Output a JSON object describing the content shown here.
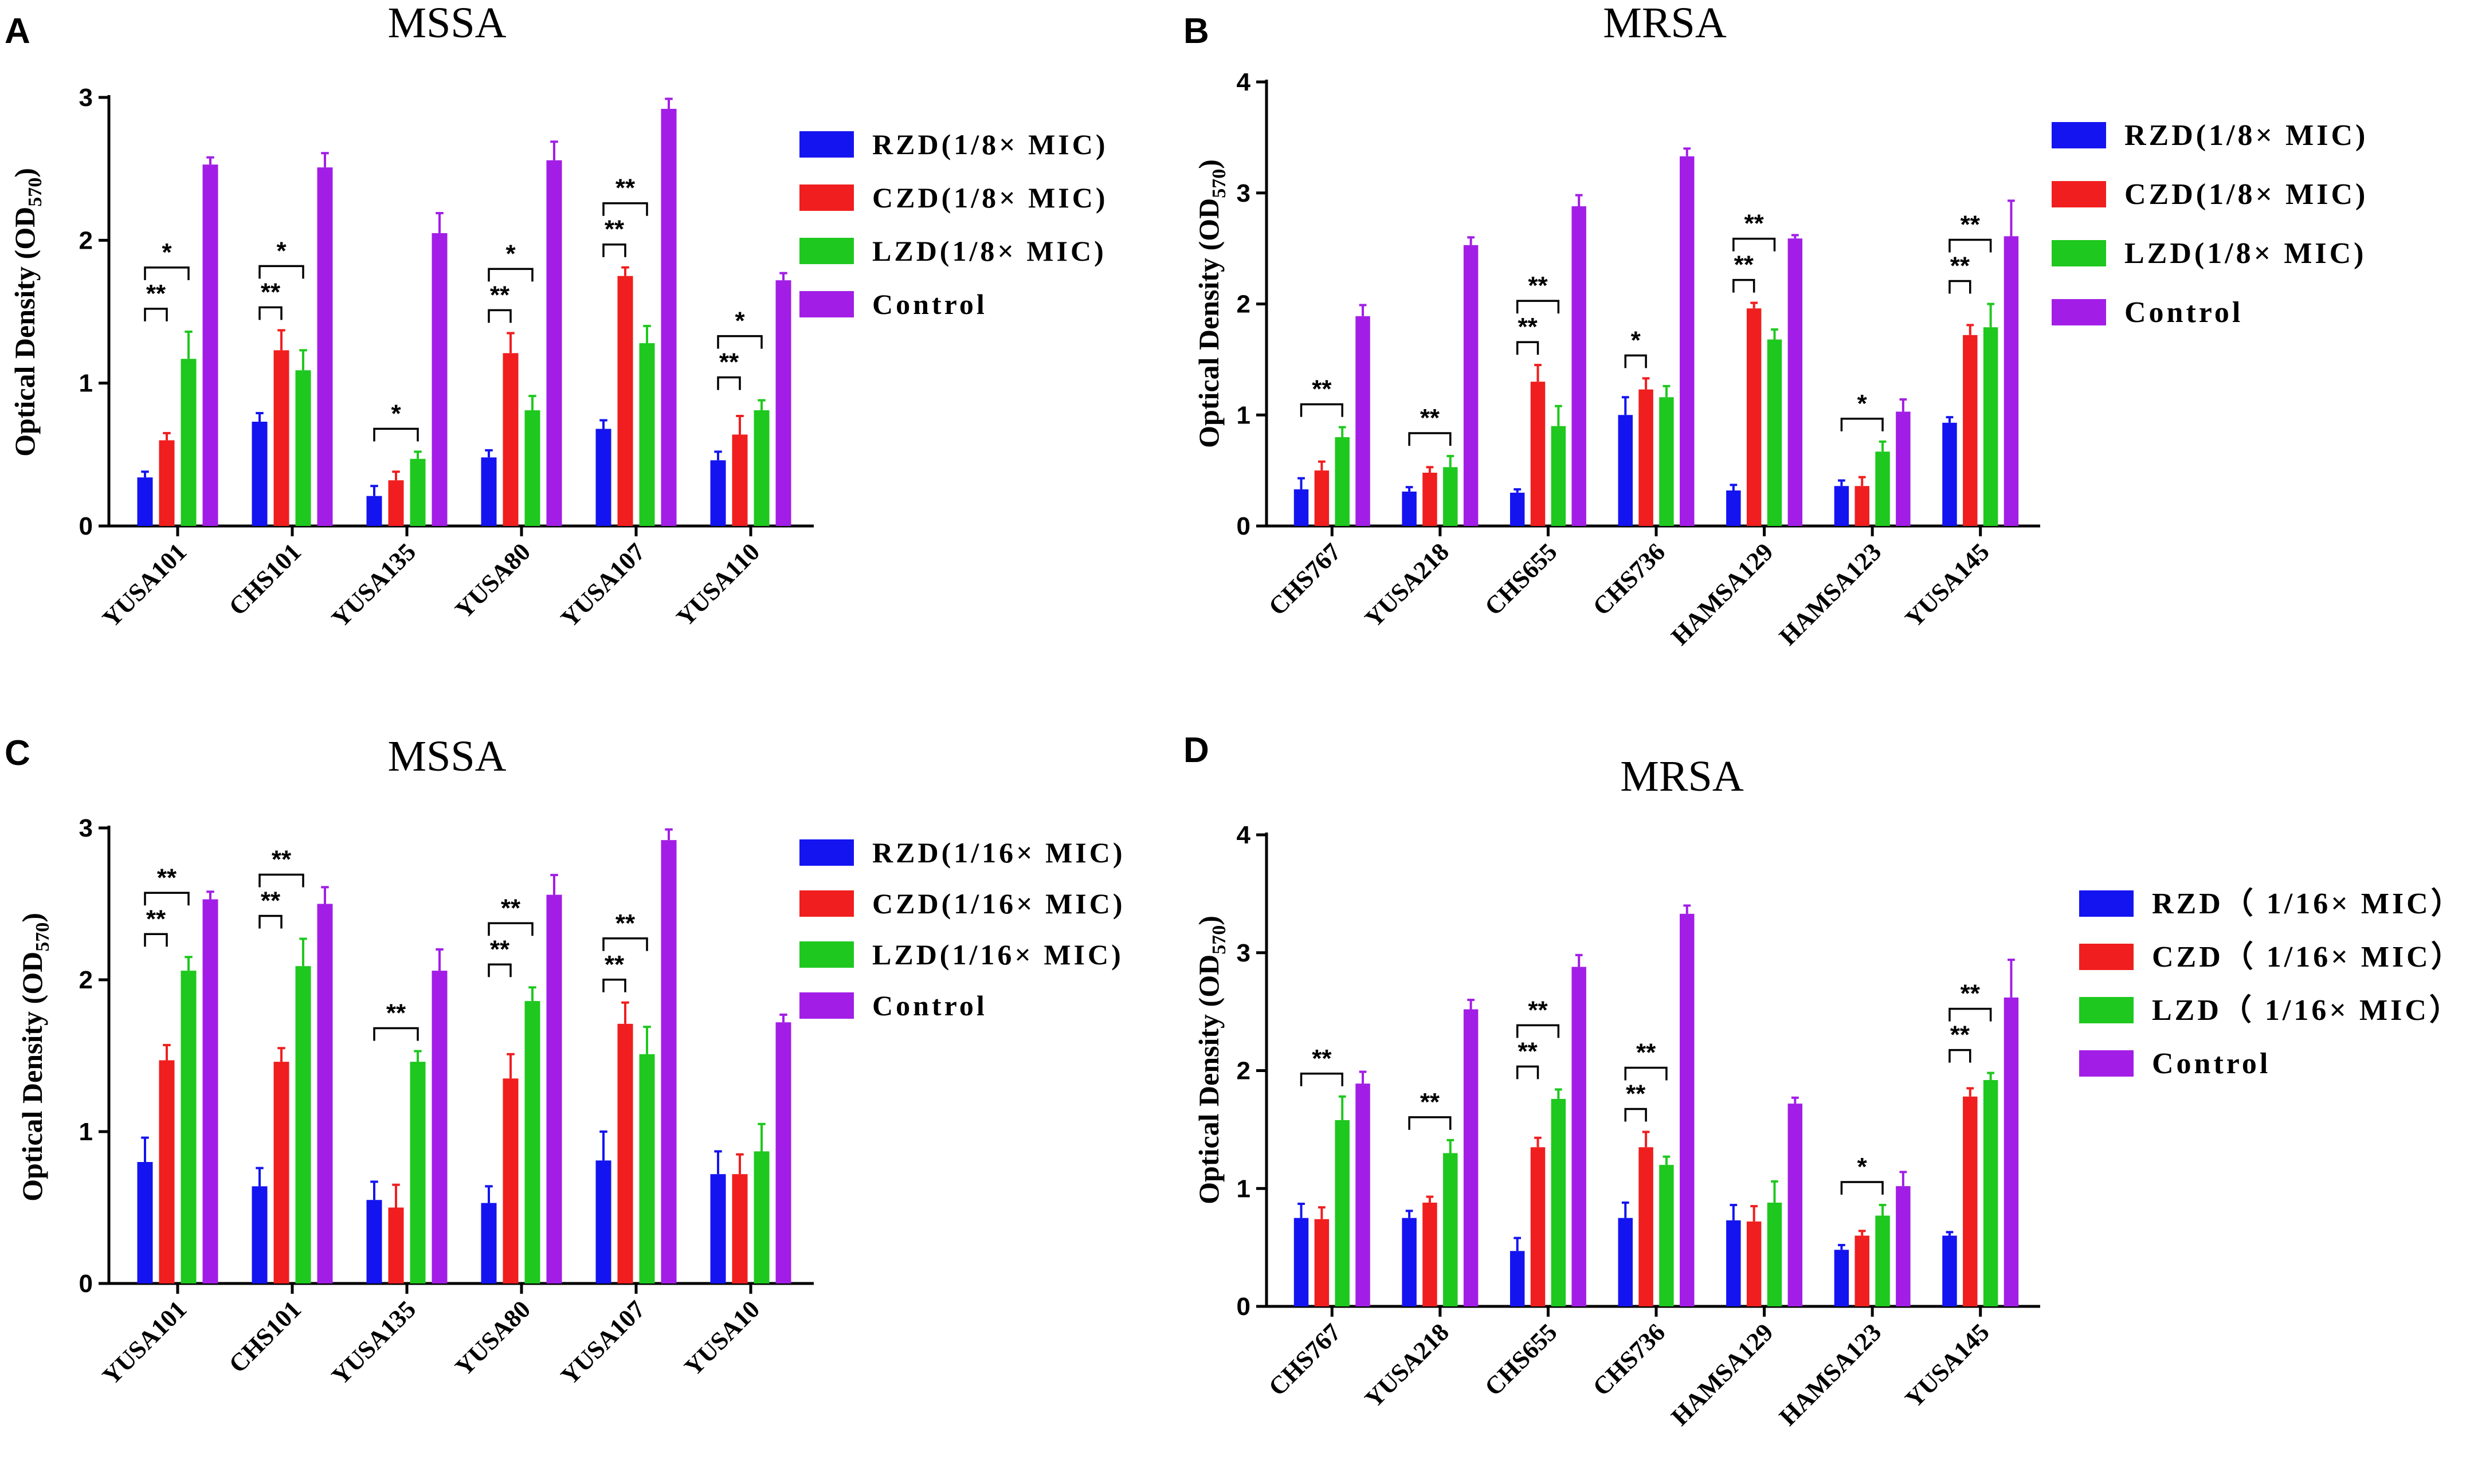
{
  "figure": {
    "colors": {
      "RZD": "#1414f0",
      "CZD": "#f01e1e",
      "LZD": "#1ec81e",
      "Control": "#a21ee6"
    }
  },
  "chart_data": [
    {
      "type": "bar",
      "panel_label": "A",
      "title": "MSSA",
      "ylabel": "Optical Density (OD",
      "ylabel_sub": "570",
      "ylabel_close": ")",
      "ylim": [
        0,
        3
      ],
      "yticks": [
        "0",
        "1",
        "2",
        "3"
      ],
      "categories": [
        "YUSA101",
        "CHS101",
        "YUSA135",
        "YUSA80",
        "YUSA107",
        "YUSA110"
      ],
      "series": [
        {
          "name": "RZD(1/8× MIC)",
          "key": "RZD",
          "values": [
            0.34,
            0.73,
            0.21,
            0.48,
            0.68,
            0.46
          ],
          "errors": [
            0.04,
            0.06,
            0.07,
            0.05,
            0.06,
            0.06
          ]
        },
        {
          "name": "CZD(1/8× MIC)",
          "key": "CZD",
          "values": [
            0.6,
            1.23,
            0.32,
            1.21,
            1.75,
            0.64
          ],
          "errors": [
            0.05,
            0.14,
            0.06,
            0.14,
            0.06,
            0.13
          ]
        },
        {
          "name": "LZD(1/8× MIC)",
          "key": "LZD",
          "values": [
            1.17,
            1.09,
            0.47,
            0.81,
            1.28,
            0.81
          ],
          "errors": [
            0.19,
            0.14,
            0.05,
            0.1,
            0.12,
            0.07
          ]
        },
        {
          "name": "Control",
          "key": "Control",
          "values": [
            2.53,
            2.51,
            2.05,
            2.56,
            2.92,
            1.72
          ],
          "errors": [
            0.05,
            0.1,
            0.14,
            0.13,
            0.07,
            0.05
          ]
        }
      ],
      "annotations": [
        {
          "cat": 0,
          "from": 0,
          "to": 1,
          "label": "**"
        },
        {
          "cat": 0,
          "from": 0,
          "to": 2,
          "label": "*"
        },
        {
          "cat": 1,
          "from": 0,
          "to": 1,
          "label": "**"
        },
        {
          "cat": 1,
          "from": 0,
          "to": 2,
          "label": "*"
        },
        {
          "cat": 2,
          "from": 0,
          "to": 2,
          "label": "*"
        },
        {
          "cat": 3,
          "from": 0,
          "to": 1,
          "label": "**"
        },
        {
          "cat": 3,
          "from": 0,
          "to": 2,
          "label": "*"
        },
        {
          "cat": 4,
          "from": 0,
          "to": 1,
          "label": "**"
        },
        {
          "cat": 4,
          "from": 0,
          "to": 2,
          "label": "**"
        },
        {
          "cat": 5,
          "from": 0,
          "to": 1,
          "label": "**"
        },
        {
          "cat": 5,
          "from": 0,
          "to": 2,
          "label": "*"
        }
      ]
    },
    {
      "type": "bar",
      "panel_label": "B",
      "title": "MRSA",
      "ylabel": "Optical Density (OD",
      "ylabel_sub": "570",
      "ylabel_close": ")",
      "ylim": [
        0,
        4
      ],
      "yticks": [
        "0",
        "1",
        "2",
        "3",
        "4"
      ],
      "categories": [
        "CHS767",
        "YUSA218",
        "CHS655",
        "CHS736",
        "HAMSA129",
        "HAMSA123",
        "YUSA145"
      ],
      "series": [
        {
          "name": "RZD(1/8× MIC)",
          "key": "RZD",
          "values": [
            0.33,
            0.31,
            0.3,
            1.0,
            0.32,
            0.36,
            0.93
          ],
          "errors": [
            0.1,
            0.04,
            0.03,
            0.16,
            0.05,
            0.05,
            0.05
          ]
        },
        {
          "name": "CZD(1/8× MIC)",
          "key": "CZD",
          "values": [
            0.5,
            0.48,
            1.3,
            1.23,
            1.96,
            0.36,
            1.72
          ],
          "errors": [
            0.08,
            0.05,
            0.15,
            0.1,
            0.05,
            0.08,
            0.09
          ]
        },
        {
          "name": "LZD(1/8× MIC)",
          "key": "LZD",
          "values": [
            0.8,
            0.53,
            0.9,
            1.16,
            1.68,
            0.67,
            1.79
          ],
          "errors": [
            0.09,
            0.1,
            0.18,
            0.1,
            0.09,
            0.09,
            0.21
          ]
        },
        {
          "name": "Control",
          "key": "Control",
          "values": [
            1.89,
            2.53,
            2.88,
            3.33,
            2.59,
            1.03,
            2.61
          ],
          "errors": [
            0.1,
            0.07,
            0.1,
            0.07,
            0.03,
            0.11,
            0.32
          ]
        }
      ],
      "annotations": [
        {
          "cat": 0,
          "from": 0,
          "to": 2,
          "label": "**"
        },
        {
          "cat": 1,
          "from": 0,
          "to": 2,
          "label": "**"
        },
        {
          "cat": 2,
          "from": 0,
          "to": 1,
          "label": "**"
        },
        {
          "cat": 2,
          "from": 0,
          "to": 2,
          "label": "**"
        },
        {
          "cat": 3,
          "from": 0,
          "to": 1,
          "label": "*"
        },
        {
          "cat": 4,
          "from": 0,
          "to": 1,
          "label": "**"
        },
        {
          "cat": 4,
          "from": 0,
          "to": 2,
          "label": "**"
        },
        {
          "cat": 5,
          "from": 0,
          "to": 2,
          "label": "*"
        },
        {
          "cat": 6,
          "from": 0,
          "to": 1,
          "label": "**"
        },
        {
          "cat": 6,
          "from": 0,
          "to": 2,
          "label": "**"
        }
      ]
    },
    {
      "type": "bar",
      "panel_label": "C",
      "title": "MSSA",
      "ylabel": "Optical Density (OD",
      "ylabel_sub": "570",
      "ylabel_close": ")",
      "ylim": [
        0,
        3
      ],
      "yticks": [
        "0",
        "1",
        "2",
        "3"
      ],
      "categories": [
        "YUSA101",
        "CHS101",
        "YUSA135",
        "YUSA80",
        "YUSA107",
        "YUSA10"
      ],
      "series": [
        {
          "name": "RZD(1/16× MIC)",
          "key": "RZD",
          "values": [
            0.8,
            0.64,
            0.55,
            0.53,
            0.81,
            0.72
          ],
          "errors": [
            0.16,
            0.12,
            0.12,
            0.11,
            0.19,
            0.15
          ]
        },
        {
          "name": "CZD(1/16× MIC)",
          "key": "CZD",
          "values": [
            1.47,
            1.46,
            0.5,
            1.35,
            1.71,
            0.72
          ],
          "errors": [
            0.1,
            0.09,
            0.15,
            0.16,
            0.14,
            0.13
          ]
        },
        {
          "name": "LZD(1/16× MIC)",
          "key": "LZD",
          "values": [
            2.06,
            2.09,
            1.46,
            1.86,
            1.51,
            0.87
          ],
          "errors": [
            0.09,
            0.18,
            0.07,
            0.09,
            0.18,
            0.18
          ]
        },
        {
          "name": "Control",
          "key": "Control",
          "values": [
            2.53,
            2.5,
            2.06,
            2.56,
            2.92,
            1.72
          ],
          "errors": [
            0.05,
            0.11,
            0.14,
            0.13,
            0.07,
            0.05
          ]
        }
      ],
      "annotations": [
        {
          "cat": 0,
          "from": 0,
          "to": 1,
          "label": "**"
        },
        {
          "cat": 0,
          "from": 0,
          "to": 2,
          "label": "**"
        },
        {
          "cat": 1,
          "from": 0,
          "to": 1,
          "label": "**"
        },
        {
          "cat": 1,
          "from": 0,
          "to": 2,
          "label": "**"
        },
        {
          "cat": 2,
          "from": 0,
          "to": 2,
          "label": "**"
        },
        {
          "cat": 3,
          "from": 0,
          "to": 1,
          "label": "**"
        },
        {
          "cat": 3,
          "from": 0,
          "to": 2,
          "label": "**"
        },
        {
          "cat": 4,
          "from": 0,
          "to": 1,
          "label": "**"
        },
        {
          "cat": 4,
          "from": 0,
          "to": 2,
          "label": "**"
        }
      ]
    },
    {
      "type": "bar",
      "panel_label": "D",
      "title": "MRSA",
      "ylabel": "Optical Density (OD",
      "ylabel_sub": "570",
      "ylabel_close": ")",
      "ylim": [
        0,
        4
      ],
      "yticks": [
        "0",
        "1",
        "2",
        "3",
        "4"
      ],
      "categories": [
        "CHS767",
        "YUSA218",
        "CHS655",
        "CHS736",
        "HAMSA129",
        "HAMSA123",
        "YUSA145"
      ],
      "series": [
        {
          "name": "RZD（ 1/16× MIC）",
          "key": "RZD",
          "values": [
            0.75,
            0.75,
            0.47,
            0.75,
            0.73,
            0.48,
            0.6
          ],
          "errors": [
            0.12,
            0.06,
            0.11,
            0.13,
            0.13,
            0.04,
            0.03
          ]
        },
        {
          "name": "CZD（ 1/16× MIC）",
          "key": "CZD",
          "values": [
            0.74,
            0.88,
            1.35,
            1.35,
            0.72,
            0.6,
            1.78
          ],
          "errors": [
            0.1,
            0.05,
            0.08,
            0.13,
            0.13,
            0.04,
            0.07
          ]
        },
        {
          "name": "LZD（ 1/16× MIC）",
          "key": "LZD",
          "values": [
            1.58,
            1.3,
            1.76,
            1.2,
            0.88,
            0.77,
            1.92
          ],
          "errors": [
            0.2,
            0.11,
            0.08,
            0.07,
            0.18,
            0.09,
            0.06
          ]
        },
        {
          "name": "Control",
          "key": "Control",
          "values": [
            1.89,
            2.52,
            2.88,
            3.33,
            1.72,
            1.02,
            2.62
          ],
          "errors": [
            0.1,
            0.08,
            0.1,
            0.07,
            0.05,
            0.12,
            0.32
          ]
        }
      ],
      "annotations": [
        {
          "cat": 0,
          "from": 0,
          "to": 2,
          "label": "**"
        },
        {
          "cat": 1,
          "from": 0,
          "to": 2,
          "label": "**"
        },
        {
          "cat": 2,
          "from": 0,
          "to": 1,
          "label": "**"
        },
        {
          "cat": 2,
          "from": 0,
          "to": 2,
          "label": "**"
        },
        {
          "cat": 3,
          "from": 0,
          "to": 1,
          "label": "**"
        },
        {
          "cat": 3,
          "from": 0,
          "to": 2,
          "label": "**"
        },
        {
          "cat": 5,
          "from": 0,
          "to": 2,
          "label": "*"
        },
        {
          "cat": 6,
          "from": 0,
          "to": 1,
          "label": "**"
        },
        {
          "cat": 6,
          "from": 0,
          "to": 2,
          "label": "**"
        }
      ]
    }
  ]
}
